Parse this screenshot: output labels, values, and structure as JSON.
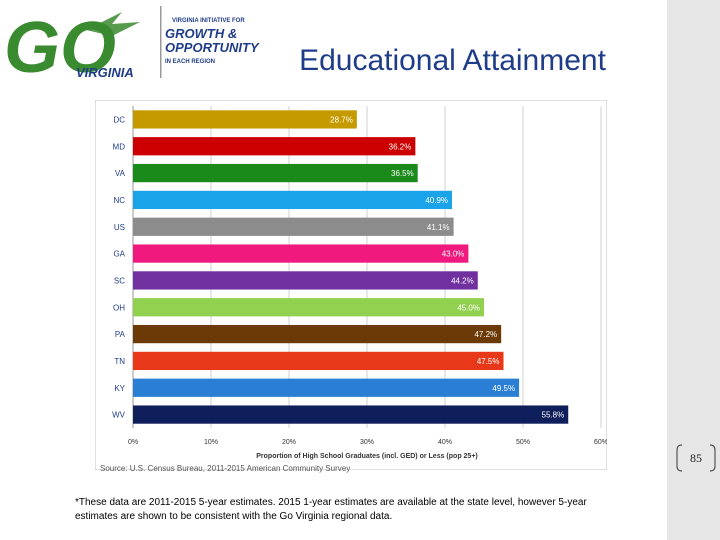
{
  "header": {
    "logo_go": "GO",
    "logo_virginia": "VIRGINIA",
    "initiative_line": "VIRGINIA INITIATIVE FOR",
    "growth": "GROWTH &",
    "opportunity": "OPPORTUNITY",
    "region_line": "IN EACH REGION",
    "title": "Educational Attainment"
  },
  "colors": {
    "logo_green": "#3a8a2f",
    "title_blue": "#1f3c88",
    "sidebar_gray": "#e6e6e6"
  },
  "chart_data": {
    "type": "bar",
    "orientation": "horizontal",
    "categories": [
      "DC",
      "MD",
      "VA",
      "NC",
      "US",
      "GA",
      "SC",
      "OH",
      "PA",
      "TN",
      "KY",
      "WV"
    ],
    "values": [
      28.7,
      36.2,
      36.5,
      40.9,
      41.1,
      43.0,
      44.2,
      45.0,
      47.2,
      47.5,
      49.5,
      55.8
    ],
    "data_labels": [
      "28.7%",
      "36.2%",
      "36.5%",
      "40.9%",
      "41.1%",
      "43.0%",
      "44.2%",
      "45.0%",
      "47.2%",
      "47.5%",
      "49.5%",
      "55.8%"
    ],
    "bar_colors": [
      "#c59a00",
      "#cc0000",
      "#1a8a1a",
      "#1aa3e8",
      "#8c8c8c",
      "#f0197d",
      "#7030a0",
      "#92d050",
      "#6b3a06",
      "#e8381a",
      "#2a7fd4",
      "#0f1f5c"
    ],
    "xlim": [
      0,
      60
    ],
    "x_ticks": [
      "0%",
      "10%",
      "20%",
      "30%",
      "40%",
      "50%",
      "60%"
    ],
    "xlabel": "Proportion of High School Graduates (incl. GED) or Less (pop 25+)",
    "ylabel": "",
    "title": "",
    "grid": true,
    "source": "Source: U.S. Census Bureau, 2011-2015 American Community Survey"
  },
  "footnote": "*These data are 2011-2015 5-year estimates. 2015 1-year estimates are available at the state level, however 5-year estimates are shown to be consistent with the Go Virginia regional data.",
  "page_number": "85"
}
